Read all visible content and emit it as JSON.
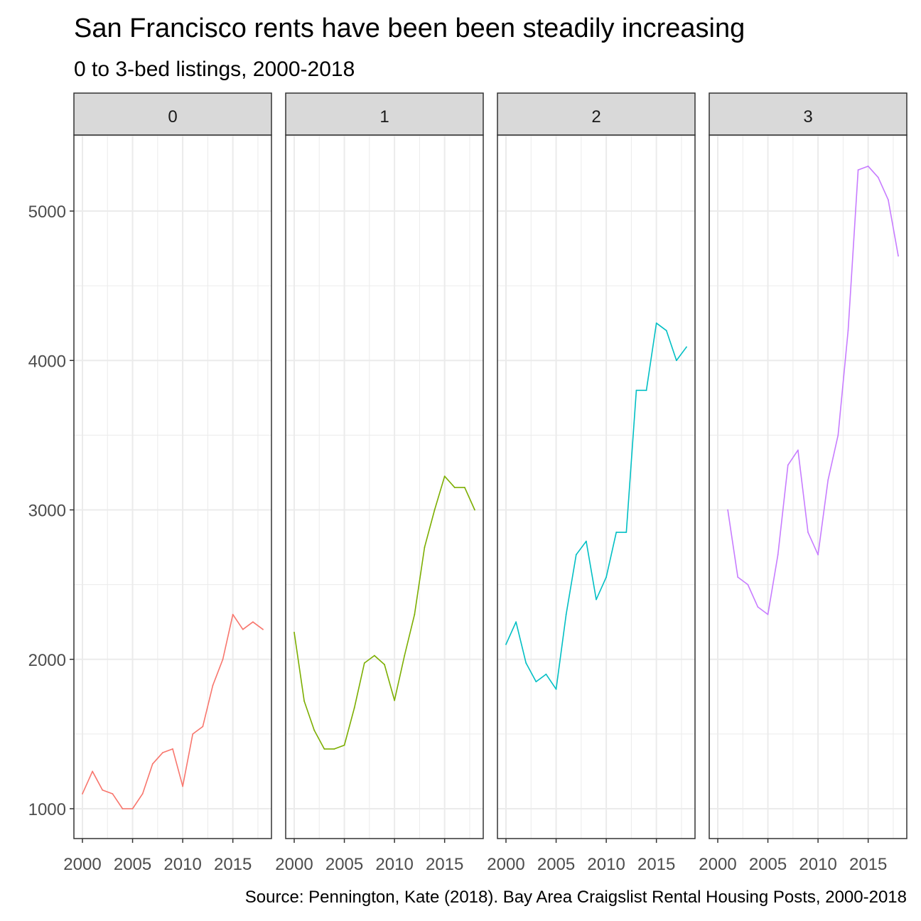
{
  "chart_data": {
    "type": "line",
    "title": "San Francisco rents have been been steadily increasing",
    "subtitle": "0 to 3-bed listings, 2000-2018",
    "caption": "Source: Pennington, Kate (2018). Bay Area Craigslist Rental Housing Posts, 2000-2018",
    "xlabel": "",
    "ylabel": "",
    "xlim": [
      2000,
      2018
    ],
    "ylim": [
      800,
      5500
    ],
    "x_ticks": [
      2000,
      2005,
      2010,
      2015
    ],
    "x_tick_labels": [
      "2000",
      "2005",
      "2010",
      "2015"
    ],
    "y_ticks": [
      1000,
      2000,
      3000,
      4000,
      5000
    ],
    "y_tick_labels": [
      "1000",
      "2000",
      "3000",
      "4000",
      "5000"
    ],
    "grid": true,
    "legend": "none",
    "facets": [
      {
        "label": "0",
        "color": "#F8766D",
        "x": [
          2000,
          2001,
          2002,
          2003,
          2004,
          2005,
          2006,
          2007,
          2008,
          2009,
          2010,
          2011,
          2012,
          2013,
          2014,
          2015,
          2016,
          2017,
          2018
        ],
        "y": [
          1100,
          1250,
          1125,
          1100,
          1000,
          1000,
          1100,
          1300,
          1375,
          1400,
          1150,
          1500,
          1550,
          1825,
          2000,
          2300,
          2200,
          2250,
          2200
        ]
      },
      {
        "label": "1",
        "color": "#7CAE00",
        "x": [
          2000,
          2001,
          2002,
          2003,
          2004,
          2005,
          2006,
          2007,
          2008,
          2009,
          2010,
          2011,
          2012,
          2013,
          2014,
          2015,
          2016,
          2017,
          2018
        ],
        "y": [
          2180,
          1720,
          1525,
          1400,
          1400,
          1425,
          1675,
          1975,
          2025,
          1965,
          1725,
          2025,
          2300,
          2750,
          3000,
          3225,
          3150,
          3150,
          3000
        ]
      },
      {
        "label": "2",
        "color": "#00BFC4",
        "x": [
          2000,
          2001,
          2002,
          2003,
          2004,
          2005,
          2006,
          2007,
          2008,
          2009,
          2010,
          2011,
          2012,
          2013,
          2014,
          2015,
          2016,
          2017,
          2018
        ],
        "y": [
          2100,
          2250,
          1975,
          1850,
          1900,
          1800,
          2300,
          2700,
          2790,
          2400,
          2550,
          2850,
          2850,
          3800,
          3800,
          4250,
          4200,
          4000,
          4090
        ]
      },
      {
        "label": "3",
        "color": "#C77CFF",
        "x": [
          2001,
          2002,
          2003,
          2004,
          2005,
          2006,
          2007,
          2008,
          2009,
          2010,
          2011,
          2012,
          2013,
          2014,
          2015,
          2016,
          2017,
          2018
        ],
        "y": [
          3000,
          2550,
          2500,
          2350,
          2300,
          2700,
          3300,
          3400,
          2850,
          2700,
          3200,
          3500,
          4200,
          5275,
          5300,
          5225,
          5075,
          4700
        ]
      }
    ]
  }
}
